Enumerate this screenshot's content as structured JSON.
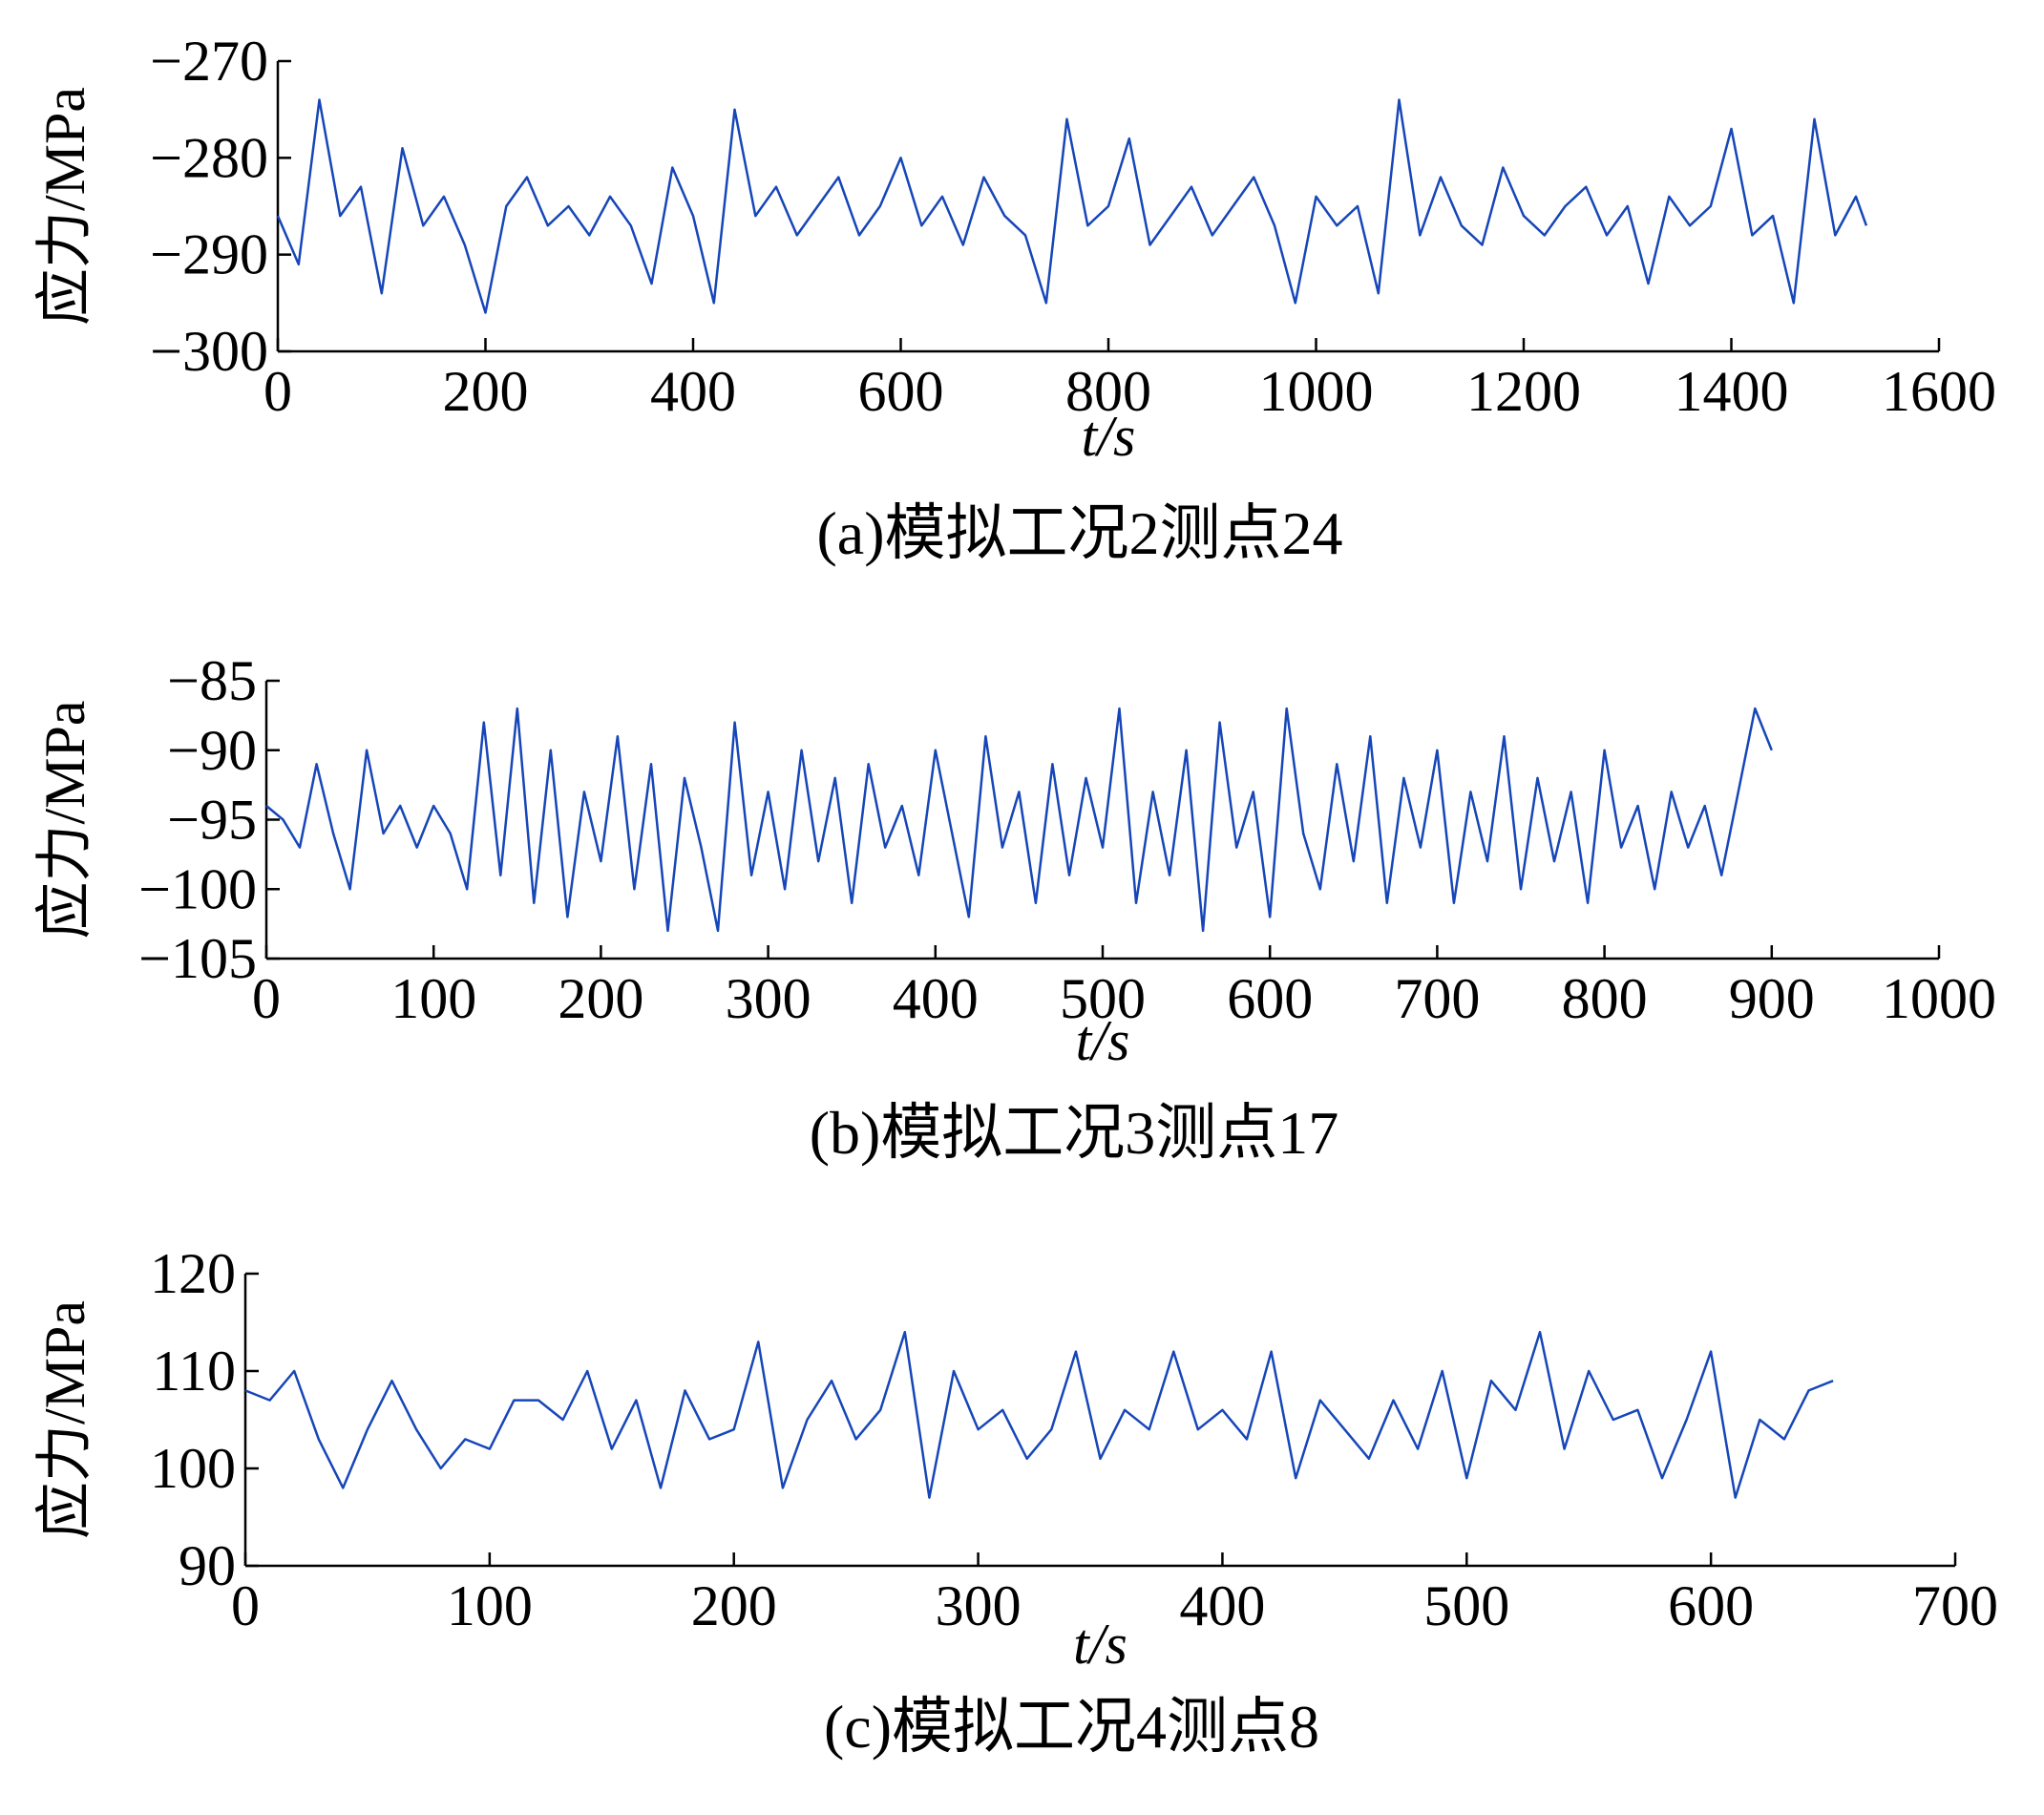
{
  "chart_data": [
    {
      "type": "line",
      "title": "(a)模拟工况2测点24",
      "x_label": "t/s",
      "y_label": "应力/MPa",
      "color": "#1646b8",
      "x": [
        0,
        20,
        40,
        60,
        80,
        100,
        120,
        140,
        160,
        180,
        200,
        220,
        240,
        260,
        280,
        300,
        320,
        340,
        360,
        380,
        400,
        420,
        440,
        460,
        480,
        500,
        520,
        540,
        560,
        580,
        600,
        620,
        640,
        660,
        680,
        700,
        720,
        740,
        760,
        780,
        800,
        820,
        840,
        860,
        880,
        900,
        920,
        940,
        960,
        980,
        1000,
        1020,
        1040,
        1060,
        1080,
        1100,
        1120,
        1140,
        1160,
        1180,
        1200,
        1220,
        1240,
        1260,
        1280,
        1300,
        1320,
        1340,
        1360,
        1380,
        1400,
        1420,
        1440,
        1460,
        1480,
        1500,
        1520,
        1530
      ],
      "values": [
        -286,
        -291,
        -274,
        -286,
        -283,
        -294,
        -279,
        -287,
        -284,
        -289,
        -296,
        -285,
        -282,
        -287,
        -285,
        -288,
        -284,
        -287,
        -293,
        -281,
        -286,
        -295,
        -275,
        -286,
        -283,
        -288,
        -285,
        -282,
        -288,
        -285,
        -280,
        -287,
        -284,
        -289,
        -282,
        -286,
        -288,
        -295,
        -276,
        -287,
        -285,
        -278,
        -289,
        -286,
        -283,
        -288,
        -285,
        -282,
        -287,
        -295,
        -284,
        -287,
        -285,
        -294,
        -274,
        -288,
        -282,
        -287,
        -289,
        -281,
        -286,
        -288,
        -285,
        -283,
        -288,
        -285,
        -293,
        -284,
        -287,
        -285,
        -277,
        -288,
        -286,
        -295,
        -276,
        -288,
        -284,
        -287
      ],
      "xlim": [
        0,
        1600
      ],
      "ylim": [
        -300,
        -270
      ],
      "xticks": [
        0,
        200,
        400,
        600,
        800,
        1000,
        1200,
        1400,
        1600
      ],
      "yticks": [
        {
          "value": -300,
          "label": "−300"
        },
        {
          "value": -290,
          "label": "−290"
        },
        {
          "value": -280,
          "label": "−280"
        },
        {
          "value": -270,
          "label": "−270"
        }
      ]
    },
    {
      "type": "line",
      "title": "(b)模拟工况3测点17",
      "x_label": "t/s",
      "y_label": "应力/MPa",
      "color": "#1646b8",
      "x": [
        0,
        10,
        20,
        30,
        40,
        50,
        60,
        70,
        80,
        90,
        100,
        110,
        120,
        130,
        140,
        150,
        160,
        170,
        180,
        190,
        200,
        210,
        220,
        230,
        240,
        250,
        260,
        270,
        280,
        290,
        300,
        310,
        320,
        330,
        340,
        350,
        360,
        370,
        380,
        390,
        400,
        410,
        420,
        430,
        440,
        450,
        460,
        470,
        480,
        490,
        500,
        510,
        520,
        530,
        540,
        550,
        560,
        570,
        580,
        590,
        600,
        610,
        620,
        630,
        640,
        650,
        660,
        670,
        680,
        690,
        700,
        710,
        720,
        730,
        740,
        750,
        760,
        770,
        780,
        790,
        800,
        810,
        820,
        830,
        840,
        850,
        860,
        870,
        880,
        890,
        900
      ],
      "values": [
        -94,
        -95,
        -97,
        -91,
        -96,
        -100,
        -90,
        -96,
        -94,
        -97,
        -94,
        -96,
        -100,
        -88,
        -99,
        -87,
        -101,
        -90,
        -102,
        -93,
        -98,
        -89,
        -100,
        -91,
        -103,
        -92,
        -97,
        -103,
        -88,
        -99,
        -93,
        -100,
        -90,
        -98,
        -92,
        -101,
        -91,
        -97,
        -94,
        -99,
        -90,
        -96,
        -102,
        -89,
        -97,
        -93,
        -101,
        -91,
        -99,
        -92,
        -97,
        -87,
        -101,
        -93,
        -99,
        -90,
        -103,
        -88,
        -97,
        -93,
        -102,
        -87,
        -96,
        -100,
        -91,
        -98,
        -89,
        -101,
        -92,
        -97,
        -90,
        -101,
        -93,
        -98,
        -89,
        -100,
        -92,
        -98,
        -93,
        -101,
        -90,
        -97,
        -94,
        -100,
        -93,
        -97,
        -94,
        -99,
        -93,
        -87,
        -90
      ],
      "xlim": [
        0,
        1000
      ],
      "ylim": [
        -105,
        -85
      ],
      "xticks": [
        0,
        100,
        200,
        300,
        400,
        500,
        600,
        700,
        800,
        900,
        1000
      ],
      "yticks": [
        {
          "value": -105,
          "label": "−105"
        },
        {
          "value": -100,
          "label": "−100"
        },
        {
          "value": -95,
          "label": "−95"
        },
        {
          "value": -90,
          "label": "−90"
        },
        {
          "value": -85,
          "label": "−85"
        }
      ]
    },
    {
      "type": "line",
      "title": "(c)模拟工况4测点8",
      "x_label": "t/s",
      "y_label": "应力/MPa",
      "color": "#1646b8",
      "x": [
        0,
        10,
        20,
        30,
        40,
        50,
        60,
        70,
        80,
        90,
        100,
        110,
        120,
        130,
        140,
        150,
        160,
        170,
        180,
        190,
        200,
        210,
        220,
        230,
        240,
        250,
        260,
        270,
        280,
        290,
        300,
        310,
        320,
        330,
        340,
        350,
        360,
        370,
        380,
        390,
        400,
        410,
        420,
        430,
        440,
        450,
        460,
        470,
        480,
        490,
        500,
        510,
        520,
        530,
        540,
        550,
        560,
        570,
        580,
        590,
        600,
        610,
        620,
        630,
        640,
        650
      ],
      "values": [
        108,
        107,
        110,
        103,
        98,
        104,
        109,
        104,
        100,
        103,
        102,
        107,
        107,
        105,
        110,
        102,
        107,
        98,
        108,
        103,
        104,
        113,
        98,
        105,
        109,
        103,
        106,
        114,
        97,
        110,
        104,
        106,
        101,
        104,
        112,
        101,
        106,
        104,
        112,
        104,
        106,
        103,
        112,
        99,
        107,
        104,
        101,
        107,
        102,
        110,
        99,
        109,
        106,
        114,
        102,
        110,
        105,
        106,
        99,
        105,
        112,
        97,
        105,
        103,
        108,
        109
      ],
      "xlim": [
        0,
        700
      ],
      "ylim": [
        90,
        120
      ],
      "xticks": [
        0,
        100,
        200,
        300,
        400,
        500,
        600,
        700
      ],
      "yticks": [
        90,
        100,
        110,
        120
      ]
    }
  ]
}
